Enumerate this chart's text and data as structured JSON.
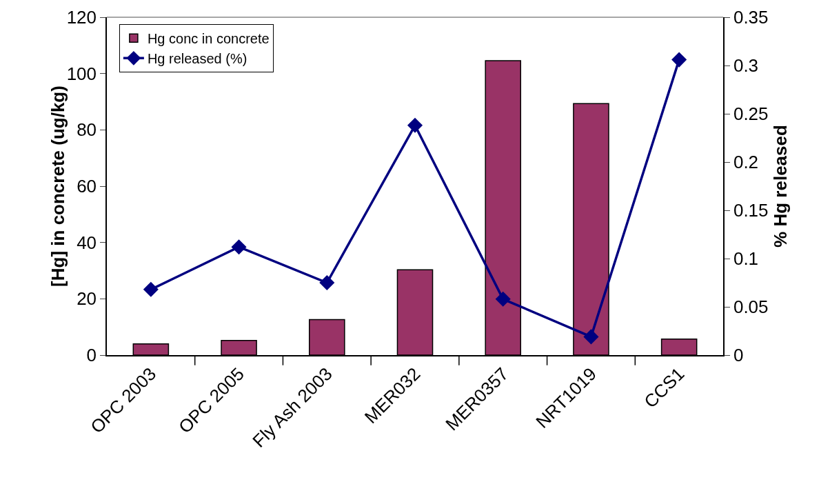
{
  "chart_data": {
    "type": "bar",
    "ylabel": "[Hg] in concrete (ug/kg)",
    "y2label": "% Hg released",
    "categories": [
      "OPC 2003",
      "OPC 2005",
      "Fly Ash 2003",
      "MER032",
      "MER0357",
      "NRT1019",
      "CCS1"
    ],
    "series": [
      {
        "name": "Hg conc in concrete",
        "color": "#993366",
        "values": [
          4,
          5.2,
          12.6,
          30.3,
          104.6,
          89.3,
          5.7
        ]
      },
      {
        "name": "Hg released (%)",
        "type": "line",
        "axis": "y2",
        "color": "#000080",
        "marker": "diamond",
        "line_style": "solid",
        "values": [
          0.068,
          0.112,
          0.075,
          0.238,
          0.058,
          0.019,
          0.306
        ]
      }
    ],
    "ylim": [
      0,
      120
    ],
    "yticks": [
      0,
      20,
      40,
      60,
      80,
      100,
      120
    ],
    "y2lim": [
      0,
      0.35
    ],
    "y2ticks": [
      0,
      0.05,
      0.1,
      0.15,
      0.2,
      0.25,
      0.3,
      0.35
    ],
    "grid": false,
    "legend": "top left"
  }
}
